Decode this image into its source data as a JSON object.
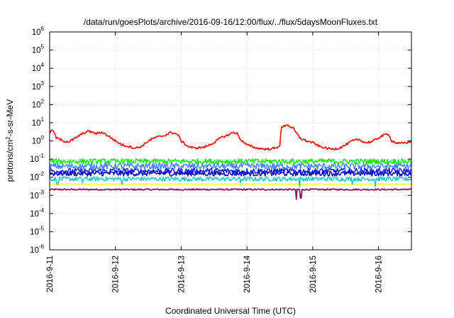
{
  "chart_data": {
    "type": "line",
    "title": "/data/run/goesPlots/archive/2016-09-16/12:00/flux/../flux/5daysMoonFluxes.txt",
    "xlabel": "Coordinated Universal Time (UTC)",
    "ylabel_parts": {
      "pre": "protons/cm",
      "sup": "2",
      "post": "-s-sr-MeV"
    },
    "y_scale": "log",
    "ylim": [
      1e-06,
      1000000.0
    ],
    "y_ticks": [
      {
        "base": "10",
        "exp": "-6"
      },
      {
        "base": "10",
        "exp": "-5"
      },
      {
        "base": "10",
        "exp": "-4"
      },
      {
        "base": "10",
        "exp": "-3"
      },
      {
        "base": "10",
        "exp": "-2"
      },
      {
        "base": "10",
        "exp": "-1"
      },
      {
        "base": "10",
        "exp": "0"
      },
      {
        "base": "10",
        "exp": "1"
      },
      {
        "base": "10",
        "exp": "2"
      },
      {
        "base": "10",
        "exp": "3"
      },
      {
        "base": "10",
        "exp": "4"
      },
      {
        "base": "10",
        "exp": "5"
      },
      {
        "base": "10",
        "exp": "6"
      }
    ],
    "x_ticks": [
      "2016-9-11",
      "2016-9-12",
      "2016-9-13",
      "2016-9-14",
      "2016-9-15",
      "2016-9-16"
    ],
    "xlim": [
      "2016-09-11 00:00",
      "2016-09-16 12:00"
    ],
    "grid": "dotted",
    "legend": "none",
    "series": [
      {
        "color": "#ff0000",
        "profile": [
          [
            0,
            3.0
          ],
          [
            0.05,
            4.0
          ],
          [
            0.1,
            1.5
          ],
          [
            0.2,
            1.0
          ],
          [
            0.3,
            0.9
          ],
          [
            0.4,
            1.5
          ],
          [
            0.5,
            2.5
          ],
          [
            0.6,
            3.5
          ],
          [
            0.7,
            2.5
          ],
          [
            0.8,
            3.0
          ],
          [
            0.9,
            1.8
          ],
          [
            1.0,
            1.0
          ],
          [
            1.1,
            0.6
          ],
          [
            1.2,
            0.5
          ],
          [
            1.3,
            0.4
          ],
          [
            1.4,
            0.5
          ],
          [
            1.5,
            1.0
          ],
          [
            1.6,
            1.5
          ],
          [
            1.75,
            2.0
          ],
          [
            1.85,
            3.0
          ],
          [
            1.95,
            2.2
          ],
          [
            2.0,
            1.0
          ],
          [
            2.1,
            0.5
          ],
          [
            2.2,
            0.4
          ],
          [
            2.35,
            0.45
          ],
          [
            2.5,
            0.8
          ],
          [
            2.6,
            1.5
          ],
          [
            2.7,
            2.0
          ],
          [
            2.8,
            3.0
          ],
          [
            2.85,
            2.5
          ],
          [
            2.9,
            1.2
          ],
          [
            3.0,
            0.6
          ],
          [
            3.15,
            0.4
          ],
          [
            3.3,
            0.35
          ],
          [
            3.45,
            0.4
          ],
          [
            3.5,
            0.6
          ],
          [
            3.52,
            5.0
          ],
          [
            3.6,
            8.0
          ],
          [
            3.7,
            5.0
          ],
          [
            3.8,
            1.5
          ],
          [
            3.9,
            1.0
          ],
          [
            4.0,
            0.8
          ],
          [
            4.1,
            0.5
          ],
          [
            4.2,
            0.4
          ],
          [
            4.3,
            0.35
          ],
          [
            4.4,
            0.4
          ],
          [
            4.5,
            0.6
          ],
          [
            4.6,
            1.0
          ],
          [
            4.7,
            1.2
          ],
          [
            4.8,
            0.8
          ],
          [
            4.9,
            0.9
          ],
          [
            5.0,
            1.5
          ],
          [
            5.1,
            2.2
          ],
          [
            5.15,
            2.5
          ],
          [
            5.2,
            1.0
          ],
          [
            5.3,
            0.7
          ],
          [
            5.4,
            0.8
          ],
          [
            5.5,
            0.9
          ]
        ],
        "jitter": 0.06,
        "width": 1.6
      },
      {
        "color": "#00ee00",
        "base": 0.075,
        "jitter": 0.14,
        "dips": [],
        "width": 1.5
      },
      {
        "color": "#4488ff",
        "base": 0.04,
        "jitter": 0.18,
        "dips": [],
        "width": 1.5
      },
      {
        "color": "#1010ff",
        "base": 0.022,
        "jitter": 0.16,
        "dips": [],
        "width": 1.5
      },
      {
        "color": "#0000a0",
        "base": 0.016,
        "jitter": 0.14,
        "dips": [],
        "width": 1.5
      },
      {
        "color": "#00c8c8",
        "base": 0.008,
        "jitter": 0.12,
        "dips": [
          [
            0.12,
            0.004
          ],
          [
            0.5,
            0.005
          ],
          [
            1.1,
            0.004
          ],
          [
            2.9,
            0.005
          ],
          [
            3.8,
            0.003
          ],
          [
            4.6,
            0.004
          ],
          [
            4.95,
            0.003
          ]
        ],
        "width": 1.4
      },
      {
        "color": "#ffff00",
        "base": 0.0042,
        "jitter": 0.02,
        "dips": [],
        "width": 1.4
      },
      {
        "color": "#8b1a5a",
        "base": 0.0021,
        "jitter": 0.04,
        "dips": [
          [
            3.75,
            0.0006
          ],
          [
            3.82,
            0.0007
          ]
        ],
        "width": 1.8
      }
    ]
  }
}
